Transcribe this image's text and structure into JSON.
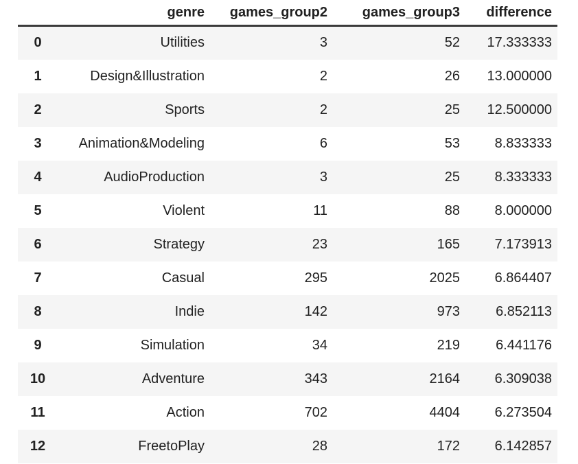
{
  "table": {
    "index_label": "",
    "columns": [
      "genre",
      "games_group2",
      "games_group3",
      "difference"
    ],
    "rows": [
      {
        "index": "0",
        "genre": "Utilities",
        "games_group2": "3",
        "games_group3": "52",
        "difference": "17.333333"
      },
      {
        "index": "1",
        "genre": "Design&Illustration",
        "games_group2": "2",
        "games_group3": "26",
        "difference": "13.000000"
      },
      {
        "index": "2",
        "genre": "Sports",
        "games_group2": "2",
        "games_group3": "25",
        "difference": "12.500000"
      },
      {
        "index": "3",
        "genre": "Animation&Modeling",
        "games_group2": "6",
        "games_group3": "53",
        "difference": "8.833333"
      },
      {
        "index": "4",
        "genre": "AudioProduction",
        "games_group2": "3",
        "games_group3": "25",
        "difference": "8.333333"
      },
      {
        "index": "5",
        "genre": "Violent",
        "games_group2": "11",
        "games_group3": "88",
        "difference": "8.000000"
      },
      {
        "index": "6",
        "genre": "Strategy",
        "games_group2": "23",
        "games_group3": "165",
        "difference": "7.173913"
      },
      {
        "index": "7",
        "genre": "Casual",
        "games_group2": "295",
        "games_group3": "2025",
        "difference": "6.864407"
      },
      {
        "index": "8",
        "genre": "Indie",
        "games_group2": "142",
        "games_group3": "973",
        "difference": "6.852113"
      },
      {
        "index": "9",
        "genre": "Simulation",
        "games_group2": "34",
        "games_group3": "219",
        "difference": "6.441176"
      },
      {
        "index": "10",
        "genre": "Adventure",
        "games_group2": "343",
        "games_group3": "2164",
        "difference": "6.309038"
      },
      {
        "index": "11",
        "genre": "Action",
        "games_group2": "702",
        "games_group3": "4404",
        "difference": "6.273504"
      },
      {
        "index": "12",
        "genre": "FreetoPlay",
        "games_group2": "28",
        "games_group3": "172",
        "difference": "6.142857"
      }
    ]
  },
  "chart_data": {
    "type": "table",
    "columns": [
      "index",
      "genre",
      "games_group2",
      "games_group3",
      "difference"
    ],
    "rows": [
      [
        0,
        "Utilities",
        3,
        52,
        17.333333
      ],
      [
        1,
        "Design&Illustration",
        2,
        26,
        13.0
      ],
      [
        2,
        "Sports",
        2,
        25,
        12.5
      ],
      [
        3,
        "Animation&Modeling",
        6,
        53,
        8.833333
      ],
      [
        4,
        "AudioProduction",
        3,
        25,
        8.333333
      ],
      [
        5,
        "Violent",
        11,
        88,
        8.0
      ],
      [
        6,
        "Strategy",
        23,
        165,
        7.173913
      ],
      [
        7,
        "Casual",
        295,
        2025,
        6.864407
      ],
      [
        8,
        "Indie",
        142,
        973,
        6.852113
      ],
      [
        9,
        "Simulation",
        34,
        219,
        6.441176
      ],
      [
        10,
        "Adventure",
        343,
        2164,
        6.309038
      ],
      [
        11,
        "Action",
        702,
        4404,
        6.273504
      ],
      [
        12,
        "FreetoPlay",
        28,
        172,
        6.142857
      ]
    ],
    "title": "",
    "layout_hints": {
      "stripe_even_rows": true,
      "header_bold": true,
      "numeric_alignment": "right"
    }
  },
  "colors": {
    "stripe": "#f5f5f5",
    "row_alt": "#ffffff",
    "header_border": "#3a3a3a",
    "text": "#212121"
  }
}
